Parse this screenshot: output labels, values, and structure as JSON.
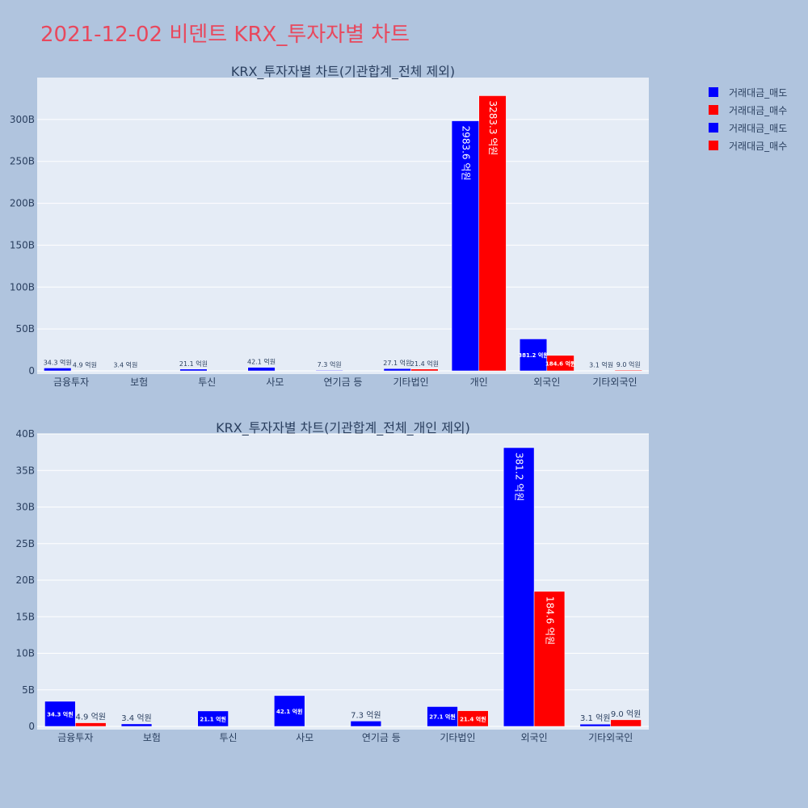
{
  "page": {
    "title": "2021-12-02 비덴트 KRX_투자자별 차트",
    "background": "#b0c4de",
    "plot_background": "#e5ecf6",
    "title_color": "#e8485d"
  },
  "legend": {
    "placement": "top-right",
    "items": [
      {
        "label": "거래대금_매도",
        "color": "#0000ff"
      },
      {
        "label": "거래대금_매수",
        "color": "#ff0000"
      },
      {
        "label": "거래대금_매도",
        "color": "#0000ff"
      },
      {
        "label": "거래대금_매수",
        "color": "#ff0000"
      }
    ]
  },
  "chart_data": [
    {
      "type": "bar",
      "title": "KRX_투자자별 차트(기관합계_전체 제외)",
      "categories": [
        "금융투자",
        "보험",
        "투신",
        "사모",
        "연기금 등",
        "기타법인",
        "개인",
        "외국인",
        "기타외국인"
      ],
      "ylim": [
        0,
        350
      ],
      "yticks": [
        0,
        50,
        100,
        150,
        200,
        250,
        300
      ],
      "ytick_labels": [
        "0",
        "50B",
        "100B",
        "150B",
        "200B",
        "250B",
        "300B"
      ],
      "grid": true,
      "series": [
        {
          "name": "거래대금_매도",
          "color": "#0000ff",
          "values": [
            3.43,
            0.34,
            2.11,
            4.21,
            0.73,
            2.71,
            298.36,
            38.12,
            0.31
          ],
          "labels": [
            "34.3 억원",
            "3.4 억원",
            "21.1 억원",
            "42.1 억원",
            "7.3 억원",
            "27.1 억원",
            "2983.6 억원",
            "381.2 억원",
            "3.1 억원"
          ]
        },
        {
          "name": "거래대금_매수",
          "color": "#ff0000",
          "values": [
            0.49,
            0,
            0,
            0,
            0,
            2.14,
            328.33,
            18.46,
            0.9
          ],
          "labels": [
            "4.9 억원",
            "",
            "",
            "",
            "",
            "21.4 억원",
            "3283.3 억원",
            "184.6 억원",
            "9.0 억원"
          ]
        }
      ]
    },
    {
      "type": "bar",
      "title": "KRX_투자자별 차트(기관합계_전체_개인 제외)",
      "categories": [
        "금융투자",
        "보험",
        "투신",
        "사모",
        "연기금 등",
        "기타법인",
        "외국인",
        "기타외국인"
      ],
      "ylim": [
        0,
        40
      ],
      "yticks": [
        0,
        5,
        10,
        15,
        20,
        25,
        30,
        35,
        40
      ],
      "ytick_labels": [
        "0",
        "5B",
        "10B",
        "15B",
        "20B",
        "25B",
        "30B",
        "35B",
        "40B"
      ],
      "grid": true,
      "series": [
        {
          "name": "거래대금_매도",
          "color": "#0000ff",
          "values": [
            3.43,
            0.34,
            2.11,
            4.21,
            0.73,
            2.71,
            38.12,
            0.31
          ],
          "labels": [
            "34.3 억원",
            "3.4 억원",
            "21.1 억원",
            "42.1 억원",
            "7.3 억원",
            "27.1 억원",
            "381.2 억원",
            "3.1 억원"
          ]
        },
        {
          "name": "거래대금_매수",
          "color": "#ff0000",
          "values": [
            0.49,
            0,
            0,
            0,
            0,
            2.14,
            18.46,
            0.9
          ],
          "labels": [
            "4.9 억원",
            "",
            "",
            "",
            "",
            "21.4 억원",
            "184.6 억원",
            "9.0 억원"
          ]
        }
      ]
    }
  ]
}
